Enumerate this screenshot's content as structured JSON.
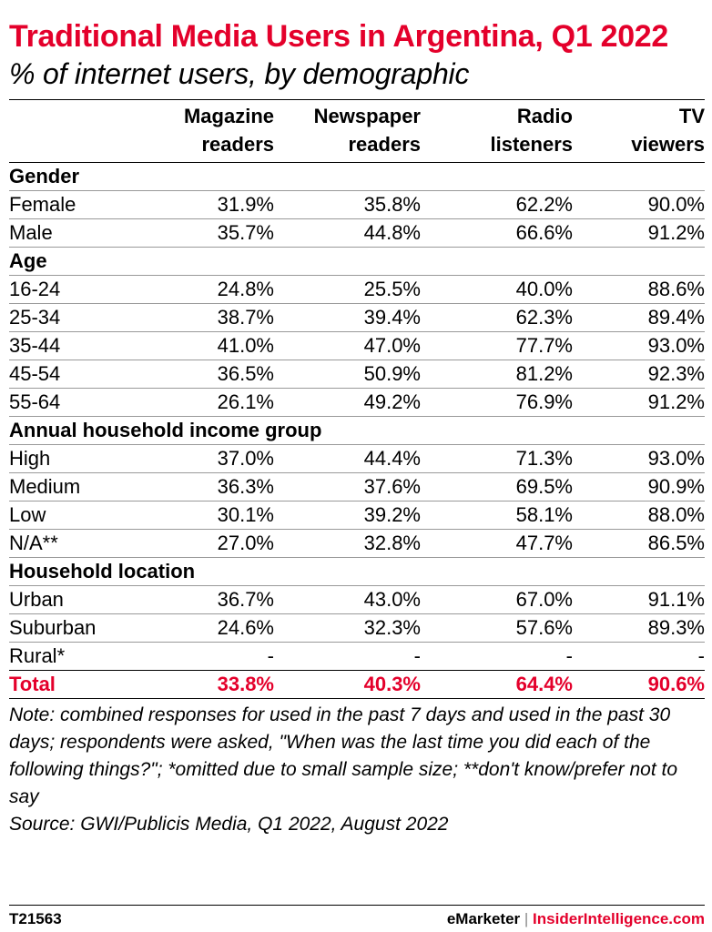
{
  "chart_data": {
    "type": "table",
    "title": "Traditional Media Users in Argentina, Q1 2022",
    "subtitle": "% of internet users, by demographic",
    "columns": [
      "Magazine readers",
      "Newspaper readers",
      "Radio listeners",
      "TV viewers"
    ],
    "groups": [
      {
        "name": "Gender",
        "rows": [
          {
            "label": "Female",
            "values": [
              "31.9%",
              "35.8%",
              "62.2%",
              "90.0%"
            ]
          },
          {
            "label": "Male",
            "values": [
              "35.7%",
              "44.8%",
              "66.6%",
              "91.2%"
            ]
          }
        ]
      },
      {
        "name": "Age",
        "rows": [
          {
            "label": "16-24",
            "values": [
              "24.8%",
              "25.5%",
              "40.0%",
              "88.6%"
            ]
          },
          {
            "label": "25-34",
            "values": [
              "38.7%",
              "39.4%",
              "62.3%",
              "89.4%"
            ]
          },
          {
            "label": "35-44",
            "values": [
              "41.0%",
              "47.0%",
              "77.7%",
              "93.0%"
            ]
          },
          {
            "label": "45-54",
            "values": [
              "36.5%",
              "50.9%",
              "81.2%",
              "92.3%"
            ]
          },
          {
            "label": "55-64",
            "values": [
              "26.1%",
              "49.2%",
              "76.9%",
              "91.2%"
            ]
          }
        ]
      },
      {
        "name": "Annual household income group",
        "rows": [
          {
            "label": "High",
            "values": [
              "37.0%",
              "44.4%",
              "71.3%",
              "93.0%"
            ]
          },
          {
            "label": "Medium",
            "values": [
              "36.3%",
              "37.6%",
              "69.5%",
              "90.9%"
            ]
          },
          {
            "label": "Low",
            "values": [
              "30.1%",
              "39.2%",
              "58.1%",
              "88.0%"
            ]
          },
          {
            "label": "N/A**",
            "values": [
              "27.0%",
              "32.8%",
              "47.7%",
              "86.5%"
            ]
          }
        ]
      },
      {
        "name": "Household location",
        "rows": [
          {
            "label": "Urban",
            "values": [
              "36.7%",
              "43.0%",
              "67.0%",
              "91.1%"
            ]
          },
          {
            "label": "Suburban",
            "values": [
              "24.6%",
              "32.3%",
              "57.6%",
              "89.3%"
            ]
          },
          {
            "label": "Rural*",
            "values": [
              "-",
              "-",
              "-",
              "-"
            ]
          }
        ]
      }
    ],
    "total": {
      "label": "Total",
      "values": [
        "33.8%",
        "40.3%",
        "64.4%",
        "90.6%"
      ]
    }
  },
  "note": "Note: combined responses for used in the past 7 days and used in the past 30 days; respondents were asked, \"When was the last time you did each of the following things?\"; *omitted due to small sample size; **don't know/prefer not to say",
  "source": "Source: GWI/Publicis Media, Q1 2022, August 2022",
  "footer": {
    "id": "T21563",
    "brand": "eMarketer",
    "separator": "|",
    "brand2": "InsiderIntelligence.com"
  },
  "colors": {
    "accent": "#e4002b",
    "text": "#000000"
  }
}
